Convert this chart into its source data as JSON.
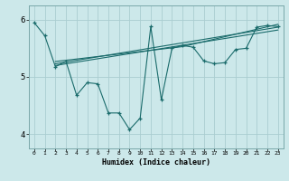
{
  "xlabel": "Humidex (Indice chaleur)",
  "bg_color": "#cce8ea",
  "grid_color": "#aacdd0",
  "line_color": "#1a6b6b",
  "xlim": [
    -0.5,
    23.5
  ],
  "ylim": [
    3.75,
    6.25
  ],
  "yticks": [
    4,
    5,
    6
  ],
  "xtick_labels": [
    "0",
    "1",
    "2",
    "3",
    "4",
    "5",
    "6",
    "7",
    "8",
    "9",
    "10",
    "11",
    "12",
    "13",
    "14",
    "15",
    "16",
    "17",
    "18",
    "19",
    "20",
    "21",
    "22",
    "23"
  ],
  "zigzag_x": [
    0,
    1,
    2,
    3,
    4,
    5,
    6,
    7,
    8,
    9,
    10,
    11,
    12,
    13,
    14,
    15,
    16,
    17,
    18,
    19,
    20,
    21,
    22,
    23
  ],
  "zigzag_y": [
    5.95,
    5.72,
    5.18,
    5.27,
    4.68,
    4.9,
    4.88,
    4.37,
    4.37,
    4.08,
    4.28,
    5.88,
    4.6,
    5.5,
    5.55,
    5.52,
    5.28,
    5.23,
    5.25,
    5.48,
    5.5,
    5.87,
    5.9,
    5.88
  ],
  "trend1_x": [
    2,
    23
  ],
  "trend1_y": [
    5.2,
    5.82
  ],
  "trend2_x": [
    2,
    23
  ],
  "trend2_y": [
    5.23,
    5.87
  ],
  "trend3_x": [
    2,
    14,
    23
  ],
  "trend3_y": [
    5.27,
    5.53,
    5.92
  ]
}
